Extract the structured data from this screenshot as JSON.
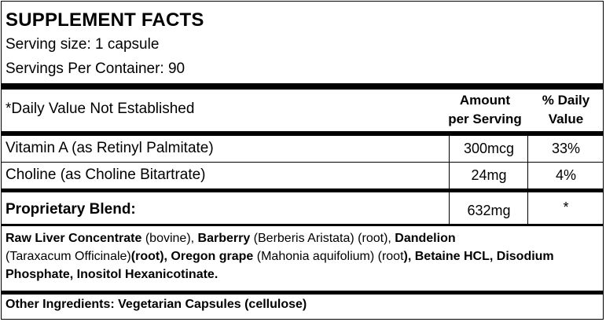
{
  "title": "SUPPLEMENT FACTS",
  "serving_size": "Serving size: 1 capsule",
  "servings_per_container": "Servings Per Container: 90",
  "header": {
    "note": "*Daily Value Not Established",
    "amount_line1": "Amount",
    "amount_line2": "per Serving",
    "dv_line1": "% Daily",
    "dv_line2": "Value"
  },
  "rows": [
    {
      "name": "Vitamin A (as Retinyl Palmitate)",
      "amount": "300mcg",
      "dv": "33%"
    },
    {
      "name": "Choline (as Choline Bitartrate)",
      "amount": "24mg",
      "dv": "4%"
    }
  ],
  "blend": {
    "name": "Proprietary Blend:",
    "amount": "632mg",
    "dv": "*"
  },
  "blend_ingredients": [
    {
      "text": "Raw Liver Concentrate",
      "bold": true
    },
    {
      "text": " (bovine), ",
      "bold": false
    },
    {
      "text": "Barberry",
      "bold": true
    },
    {
      "text": " (Berberis Aristata) (root), ",
      "bold": false
    },
    {
      "text": "Dandelion",
      "bold": true
    },
    {
      "text": " (Taraxacum Officinale)",
      "bold": false
    },
    {
      "text": "(root), Oregon grape",
      "bold": true
    },
    {
      "text": " (Mahonia aquifolium) (root",
      "bold": false
    },
    {
      "text": "), Betaine HCL, Disodium Phosphate, Inositol Hexanicotinate.",
      "bold": true
    }
  ],
  "other_ingredients": "Other Ingredients: Vegetarian Capsules (cellulose)"
}
